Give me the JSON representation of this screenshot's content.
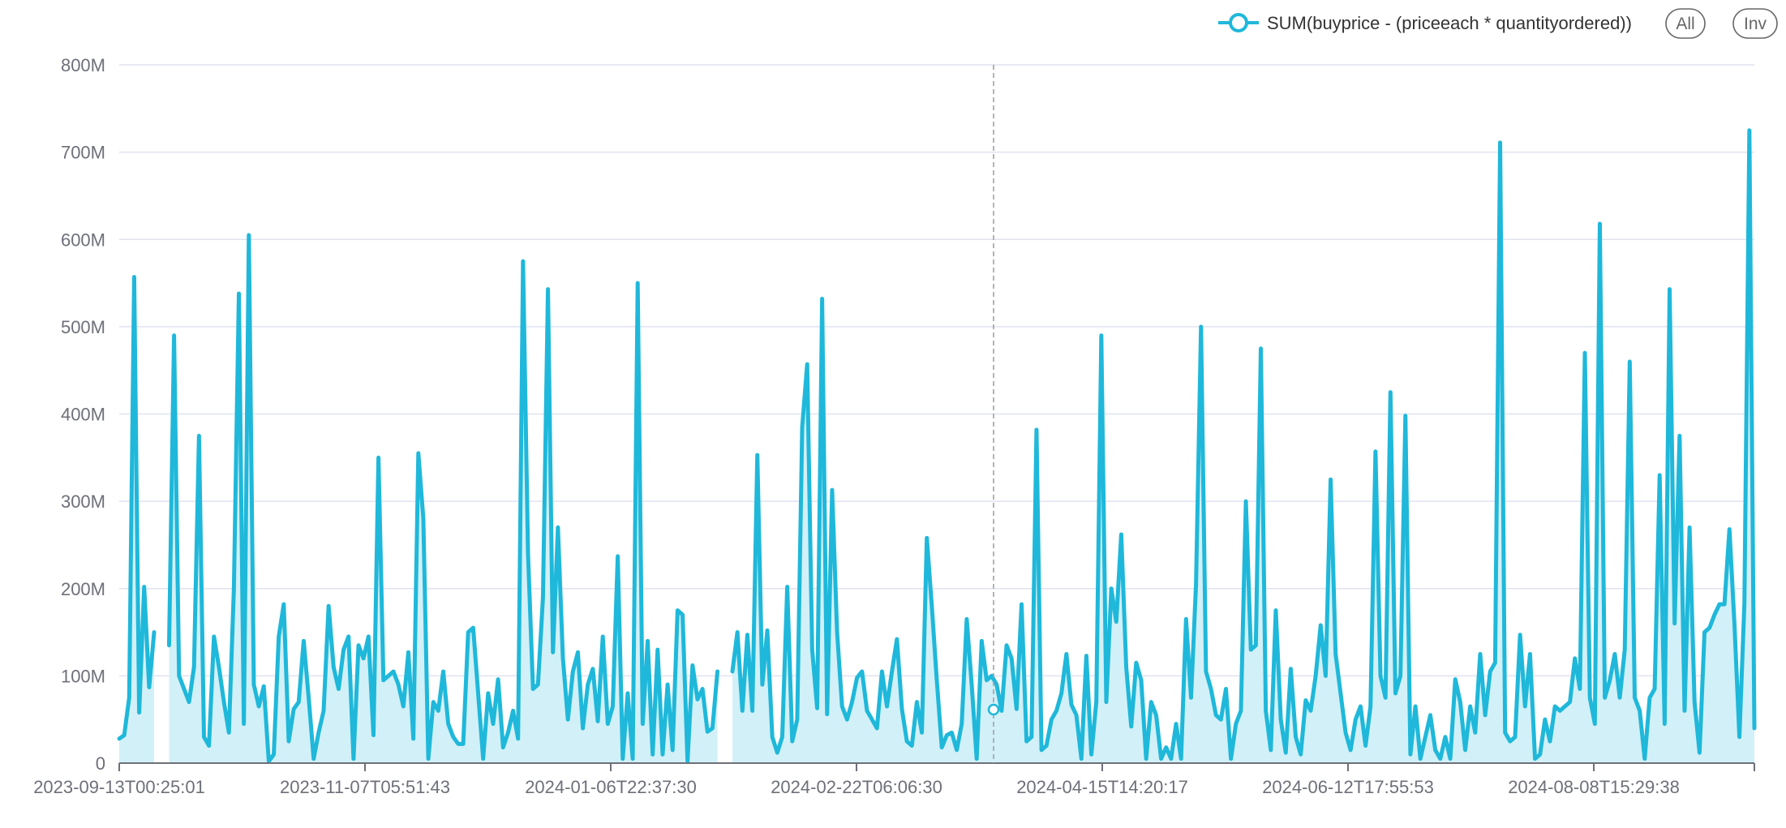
{
  "legend": {
    "series_label": "SUM(buyprice - (priceeach * quantityordered))",
    "all_button": "All",
    "inv_button": "Inv"
  },
  "colors": {
    "line": "#1fb8da",
    "area": "#d2f0f7",
    "grid": "#e0e3f0",
    "axis": "#6e7079",
    "pointer": "#9a9ca3"
  },
  "chart_data": {
    "type": "area",
    "title": "",
    "xlabel": "",
    "ylabel": "",
    "ylim": [
      0,
      800000000
    ],
    "y_ticks": [
      "0",
      "100M",
      "200M",
      "300M",
      "400M",
      "500M",
      "600M",
      "700M",
      "800M"
    ],
    "x_ticks": [
      "2023-09-13T00:25:01",
      "2023-11-07T05:51:43",
      "2024-01-06T22:37:30",
      "2024-02-22T06:06:30",
      "2024-04-15T14:20:17",
      "2024-06-12T17:55:53",
      "2024-08-08T15:29:38"
    ],
    "grid": true,
    "legend_position": "top-right",
    "series": [
      {
        "name": "SUM(buyprice - (priceeach * quantityordered))",
        "values": [
          28,
          32,
          75,
          557,
          58,
          202,
          87,
          150,
          null,
          null,
          135,
          490,
          100,
          85,
          70,
          110,
          375,
          30,
          20,
          145,
          110,
          70,
          35,
          200,
          538,
          45,
          605,
          90,
          65,
          88,
          2,
          10,
          145,
          182,
          25,
          62,
          70,
          140,
          75,
          5,
          35,
          60,
          180,
          110,
          85,
          130,
          145,
          5,
          135,
          120,
          145,
          32,
          350,
          95,
          100,
          105,
          90,
          65,
          127,
          28,
          355,
          280,
          5,
          70,
          60,
          105,
          45,
          30,
          22,
          22,
          150,
          155,
          80,
          5,
          80,
          45,
          96,
          18,
          35,
          60,
          28,
          575,
          240,
          85,
          90,
          190,
          543,
          127,
          270,
          120,
          50,
          105,
          127,
          40,
          90,
          108,
          48,
          145,
          45,
          65,
          237,
          5,
          80,
          5,
          550,
          45,
          140,
          10,
          130,
          10,
          90,
          15,
          175,
          170,
          2,
          112,
          73,
          85,
          36,
          40,
          105,
          null,
          null,
          105,
          150,
          60,
          147,
          60,
          353,
          90,
          152,
          30,
          12,
          30,
          202,
          25,
          50,
          385,
          457,
          130,
          63,
          532,
          56,
          313,
          150,
          65,
          50,
          70,
          98,
          105,
          60,
          50,
          40,
          105,
          65,
          105,
          142,
          62,
          25,
          20,
          70,
          35,
          258,
          180,
          95,
          18,
          32,
          35,
          15,
          45,
          165,
          90,
          5,
          140,
          95,
          100,
          90,
          60,
          135,
          120,
          62,
          182,
          25,
          30,
          382,
          15,
          20,
          50,
          60,
          80,
          125,
          67,
          55,
          5,
          123,
          10,
          70,
          490,
          70,
          200,
          162,
          262,
          110,
          42,
          115,
          95,
          5,
          70,
          55,
          5,
          18,
          5,
          45,
          5,
          165,
          75,
          205,
          500,
          105,
          85,
          55,
          50,
          85,
          5,
          45,
          60,
          300,
          130,
          135,
          475,
          60,
          15,
          175,
          50,
          12,
          108,
          30,
          10,
          72,
          60,
          100,
          158,
          100,
          325,
          125,
          80,
          35,
          15,
          50,
          65,
          20,
          65,
          357,
          100,
          75,
          425,
          80,
          100,
          398,
          10,
          65,
          5,
          30,
          55,
          15,
          5,
          30,
          5,
          96,
          70,
          15,
          65,
          35,
          125,
          55,
          105,
          115,
          711,
          35,
          25,
          30,
          147,
          65,
          125,
          5,
          10,
          50,
          25,
          65,
          60,
          65,
          70,
          120,
          85,
          470,
          75,
          45,
          618,
          75,
          95,
          125,
          75,
          130,
          460,
          75,
          60,
          5,
          75,
          85,
          330,
          45,
          543,
          160,
          375,
          60,
          270,
          70,
          12,
          150,
          155,
          170,
          182,
          182,
          268,
          160,
          30,
          183,
          725,
          40
        ]
      }
    ]
  }
}
